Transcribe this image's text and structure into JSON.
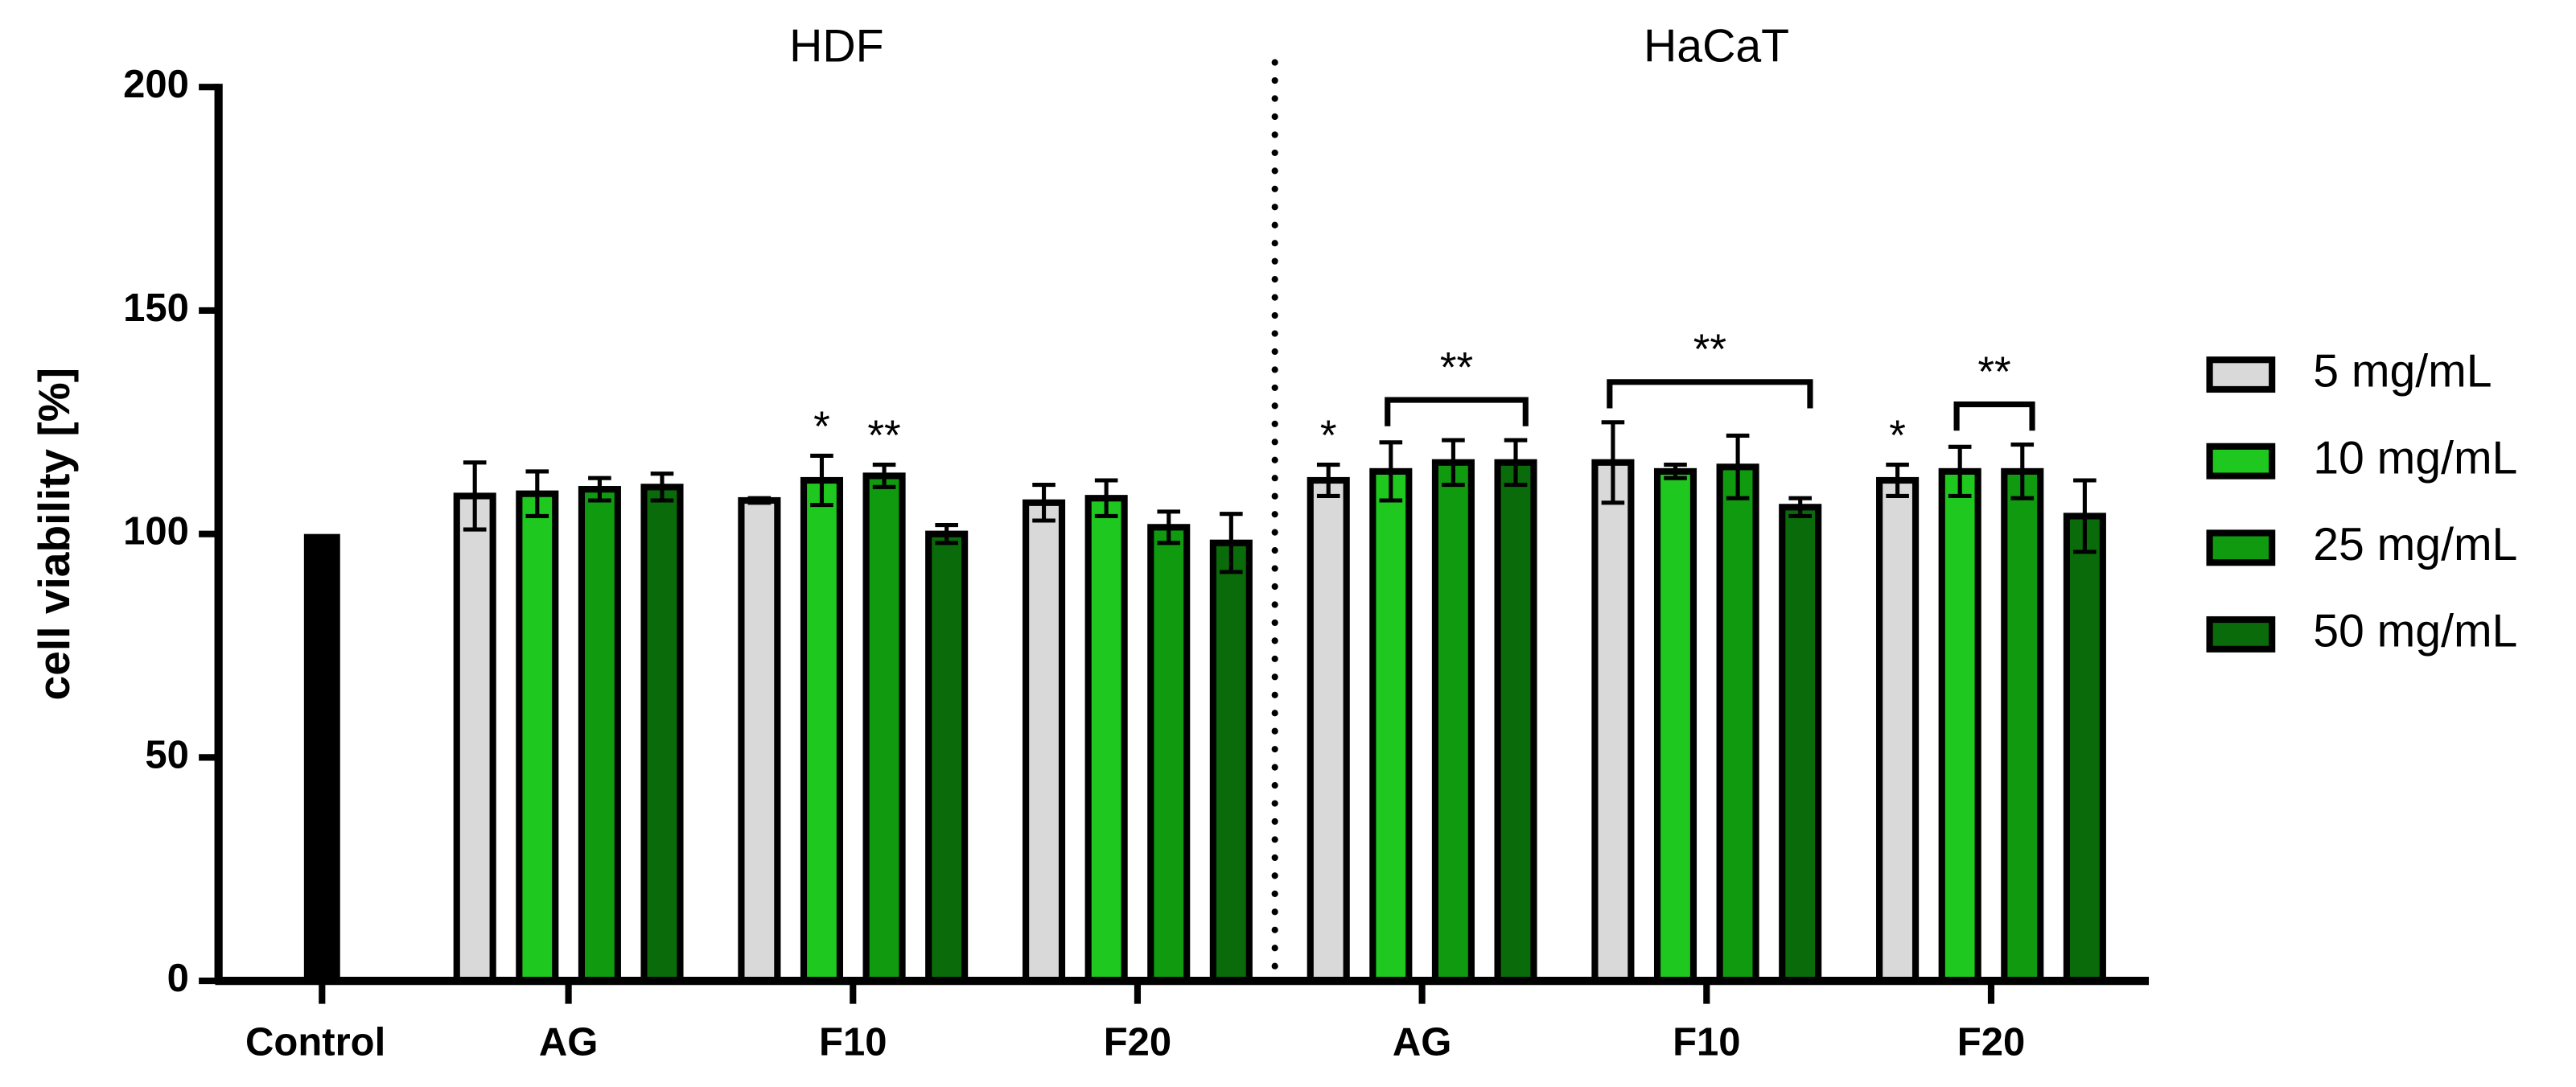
{
  "chart_data": {
    "type": "bar",
    "ylabel": "cell viability [%]",
    "panels": [
      {
        "label": "HDF"
      },
      {
        "label": "HaCaT"
      }
    ],
    "control": {
      "label": "Control",
      "value": 100,
      "color": "#000000"
    },
    "categories": [
      "AG",
      "F10",
      "F20",
      "AG",
      "F10",
      "F20"
    ],
    "series": [
      {
        "name": "5 mg/mL",
        "color": "#d9d9d9",
        "values": [
          108.5,
          107.5,
          107,
          112,
          116,
          112
        ],
        "errors": [
          7.5,
          0.5,
          4,
          3.5,
          9,
          3.5
        ]
      },
      {
        "name": "10 mg/mL",
        "color": "#1ec81e",
        "values": [
          109,
          112,
          108,
          114,
          114,
          114
        ],
        "errors": [
          5,
          5.5,
          4,
          6.5,
          1.5,
          5.5
        ]
      },
      {
        "name": "25 mg/mL",
        "color": "#0f9a0f",
        "values": [
          110,
          113,
          101.5,
          116,
          115,
          114
        ],
        "errors": [
          2.5,
          2.5,
          3.5,
          5,
          7,
          6
        ]
      },
      {
        "name": "50 mg/mL",
        "color": "#0a6b0a",
        "values": [
          110.5,
          100,
          98,
          116,
          106,
          104
        ],
        "errors": [
          3,
          2,
          6.5,
          5,
          2,
          8
        ]
      }
    ],
    "annotations": [
      {
        "text": "*",
        "group": 1,
        "from": 1,
        "to": 1
      },
      {
        "text": "**",
        "group": 1,
        "from": 2,
        "to": 2
      },
      {
        "text": "*",
        "group": 3,
        "from": 0,
        "to": 0
      },
      {
        "text": "**",
        "group": 3,
        "from": 1,
        "to": 3
      },
      {
        "text": "**",
        "group": 4,
        "from": 0,
        "to": 3
      },
      {
        "text": "*",
        "group": 5,
        "from": 0,
        "to": 0
      },
      {
        "text": "**",
        "group": 5,
        "from": 1,
        "to": 2
      }
    ],
    "ylim": [
      0,
      200
    ],
    "yticks": [
      0,
      50,
      100,
      150,
      200
    ]
  }
}
